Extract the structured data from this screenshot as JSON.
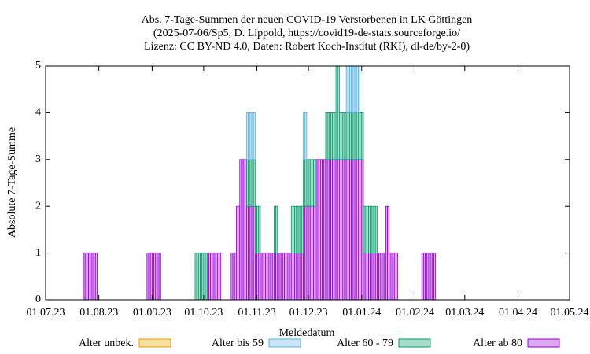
{
  "chart_data": {
    "type": "bar",
    "title": [
      "Abs. 7-Tage-Summen der neuen COVID-19 Verstorbenen in LK Göttingen",
      "(2025-07-06/Sp5, D. Lippold, https://covid19-de-stats.sourceforge.io/",
      "Lizenz: CC BY-ND 4.0, Daten: Robert Koch-Institut (RKI), dl-de/by-2-0)"
    ],
    "x_label": "Meldedatum",
    "y_label": "Absolute 7-Tage-Summe",
    "stacked": true,
    "xlim": [
      "01.07.23",
      "01.05.24"
    ],
    "xticks": [
      "01.07.23",
      "01.08.23",
      "01.09.23",
      "01.10.23",
      "01.11.23",
      "01.12.23",
      "01.01.24",
      "01.02.24",
      "01.03.24",
      "01.04.24",
      "01.05.24"
    ],
    "ylim": [
      0,
      5
    ],
    "yticks": [
      0,
      1,
      2,
      3,
      4,
      5
    ],
    "x": [
      "23.07.23",
      "24.07.23",
      "25.07.23",
      "26.07.23",
      "27.07.23",
      "28.07.23",
      "29.07.23",
      "30.07.23",
      "29.08.23",
      "30.08.23",
      "31.08.23",
      "01.09.23",
      "02.09.23",
      "03.09.23",
      "04.09.23",
      "05.09.23",
      "26.09.23",
      "27.09.23",
      "28.09.23",
      "29.09.23",
      "30.09.23",
      "01.10.23",
      "02.10.23",
      "03.10.23",
      "04.10.23",
      "05.10.23",
      "06.10.23",
      "07.10.23",
      "08.10.23",
      "09.10.23",
      "10.10.23",
      "17.10.23",
      "18.10.23",
      "19.10.23",
      "20.10.23",
      "21.10.23",
      "22.10.23",
      "23.10.23",
      "24.10.23",
      "25.10.23",
      "26.10.23",
      "27.10.23",
      "28.10.23",
      "29.10.23",
      "30.10.23",
      "31.10.23",
      "01.11.23",
      "02.11.23",
      "03.11.23",
      "04.11.23",
      "05.11.23",
      "06.11.23",
      "07.11.23",
      "08.11.23",
      "09.11.23",
      "10.11.23",
      "11.11.23",
      "12.11.23",
      "13.11.23",
      "14.11.23",
      "15.11.23",
      "16.11.23",
      "17.11.23",
      "18.11.23",
      "19.11.23",
      "20.11.23",
      "21.11.23",
      "22.11.23",
      "23.11.23",
      "24.11.23",
      "25.11.23",
      "26.11.23",
      "27.11.23",
      "28.11.23",
      "29.11.23",
      "30.11.23",
      "01.12.23",
      "02.12.23",
      "03.12.23",
      "04.12.23",
      "05.12.23",
      "06.12.23",
      "07.12.23",
      "08.12.23",
      "09.12.23",
      "10.12.23",
      "11.12.23",
      "12.12.23",
      "13.12.23",
      "14.12.23",
      "15.12.23",
      "16.12.23",
      "17.12.23",
      "18.12.23",
      "19.12.23",
      "20.12.23",
      "21.12.23",
      "22.12.23",
      "23.12.23",
      "24.12.23",
      "25.12.23",
      "26.12.23",
      "27.12.23",
      "28.12.23",
      "29.12.23",
      "30.12.23",
      "31.12.23",
      "01.01.24",
      "02.01.24",
      "03.01.24",
      "04.01.24",
      "05.01.24",
      "06.01.24",
      "07.01.24",
      "08.01.24",
      "09.01.24",
      "10.01.24",
      "11.01.24",
      "12.01.24",
      "13.01.24",
      "14.01.24",
      "15.01.24",
      "16.01.24",
      "17.01.24",
      "18.01.24",
      "19.01.24",
      "20.01.24",
      "21.01.24",
      "05.02.24",
      "06.02.24",
      "07.02.24",
      "08.02.24",
      "09.02.24",
      "10.02.24",
      "11.02.24",
      "12.02.24"
    ],
    "series": [
      {
        "name": "Alter ab 80",
        "color": "#9400d3",
        "fill": "#e0a8f0",
        "values": [
          1,
          1,
          1,
          1,
          1,
          1,
          1,
          1,
          1,
          1,
          1,
          1,
          1,
          1,
          1,
          1,
          0,
          0,
          0,
          0,
          0,
          0,
          0,
          1,
          1,
          1,
          1,
          1,
          1,
          1,
          1,
          1,
          1,
          1,
          2,
          2,
          3,
          3,
          3,
          3,
          2,
          2,
          2,
          2,
          2,
          1,
          1,
          1,
          1,
          1,
          1,
          1,
          1,
          1,
          1,
          1,
          1,
          1,
          1,
          1,
          1,
          1,
          1,
          1,
          1,
          1,
          1,
          1,
          1,
          1,
          1,
          1,
          1,
          2,
          2,
          2,
          2,
          2,
          2,
          2,
          3,
          3,
          3,
          3,
          3,
          3,
          3,
          3,
          3,
          3,
          3,
          3,
          3,
          3,
          3,
          3,
          3,
          3,
          3,
          3,
          3,
          3,
          3,
          3,
          3,
          3,
          3,
          3,
          1,
          1,
          1,
          1,
          1,
          1,
          1,
          1,
          1,
          1,
          1,
          1,
          1,
          2,
          2,
          1,
          1,
          1,
          1,
          1,
          1,
          1,
          1,
          1,
          1,
          1,
          1,
          1
        ]
      },
      {
        "name": "Alter 60 - 79",
        "color": "#009e73",
        "fill": "#a8dcc8",
        "values": [
          0,
          0,
          0,
          0,
          0,
          0,
          0,
          0,
          0,
          0,
          0,
          0,
          0,
          0,
          0,
          0,
          1,
          1,
          1,
          1,
          1,
          1,
          1,
          0,
          0,
          0,
          0,
          0,
          0,
          0,
          0,
          0,
          0,
          0,
          0,
          0,
          0,
          0,
          0,
          0,
          1,
          1,
          1,
          1,
          1,
          1,
          1,
          1,
          0,
          0,
          0,
          0,
          0,
          0,
          0,
          0,
          1,
          1,
          0,
          0,
          0,
          0,
          0,
          0,
          0,
          0,
          1,
          1,
          1,
          1,
          1,
          1,
          1,
          1,
          1,
          1,
          1,
          1,
          1,
          1,
          0,
          0,
          0,
          0,
          0,
          0,
          1,
          1,
          1,
          1,
          1,
          1,
          2,
          2,
          1,
          1,
          1,
          1,
          1,
          1,
          1,
          1,
          1,
          1,
          1,
          1,
          1,
          1,
          1,
          1,
          1,
          1,
          1,
          1,
          1,
          1,
          0,
          0,
          0,
          0,
          0,
          0,
          0,
          0,
          0,
          0,
          0,
          0,
          0,
          0,
          0,
          0,
          0,
          0,
          0,
          0
        ]
      },
      {
        "name": "Alter bis 59",
        "color": "#56b4e9",
        "fill": "#c8e6f6",
        "values": [
          0,
          0,
          0,
          0,
          0,
          0,
          0,
          0,
          0,
          0,
          0,
          0,
          0,
          0,
          0,
          0,
          0,
          0,
          0,
          0,
          0,
          0,
          0,
          0,
          0,
          0,
          0,
          0,
          0,
          0,
          0,
          0,
          0,
          0,
          0,
          0,
          0,
          0,
          0,
          0,
          1,
          1,
          1,
          1,
          1,
          0,
          0,
          0,
          0,
          0,
          0,
          0,
          0,
          0,
          0,
          0,
          0,
          0,
          0,
          0,
          0,
          0,
          0,
          0,
          0,
          0,
          0,
          0,
          0,
          0,
          0,
          0,
          0,
          1,
          1,
          0,
          0,
          0,
          0,
          0,
          0,
          0,
          0,
          0,
          0,
          0,
          0,
          0,
          0,
          0,
          0,
          0,
          0,
          0,
          0,
          0,
          0,
          0,
          1,
          1,
          1,
          1,
          1,
          1,
          1,
          1,
          0,
          0,
          0,
          0,
          0,
          0,
          0,
          0,
          0,
          0,
          0,
          0,
          0,
          0,
          0,
          0,
          0,
          0,
          0,
          0,
          0,
          0,
          0,
          0,
          0,
          0,
          0,
          0,
          0,
          0
        ]
      },
      {
        "name": "Alter unbek.",
        "color": "#e69f00",
        "fill": "#f9dfa0",
        "values": [
          0,
          0,
          0,
          0,
          0,
          0,
          0,
          0,
          0,
          0,
          0,
          0,
          0,
          0,
          0,
          0,
          0,
          0,
          0,
          0,
          0,
          0,
          0,
          0,
          0,
          0,
          0,
          0,
          0,
          0,
          0,
          0,
          0,
          0,
          0,
          0,
          0,
          0,
          0,
          0,
          0,
          0,
          0,
          0,
          0,
          0,
          0,
          0,
          0,
          0,
          0,
          0,
          0,
          0,
          0,
          0,
          0,
          0,
          0,
          0,
          0,
          0,
          0,
          0,
          0,
          0,
          0,
          0,
          0,
          0,
          0,
          0,
          0,
          0,
          0,
          0,
          0,
          0,
          0,
          0,
          0,
          0,
          0,
          0,
          0,
          0,
          0,
          0,
          0,
          0,
          0,
          0,
          0,
          0,
          0,
          0,
          0,
          0,
          0,
          0,
          0,
          0,
          0,
          0,
          0,
          0,
          0,
          0,
          0,
          0,
          0,
          0,
          0,
          0,
          0,
          0,
          0,
          0,
          0,
          0,
          0,
          0,
          0,
          0,
          0,
          0,
          0,
          0,
          0,
          0,
          0,
          0,
          0,
          0,
          0,
          0
        ]
      }
    ],
    "legend_order": [
      3,
      2,
      1,
      0
    ]
  }
}
